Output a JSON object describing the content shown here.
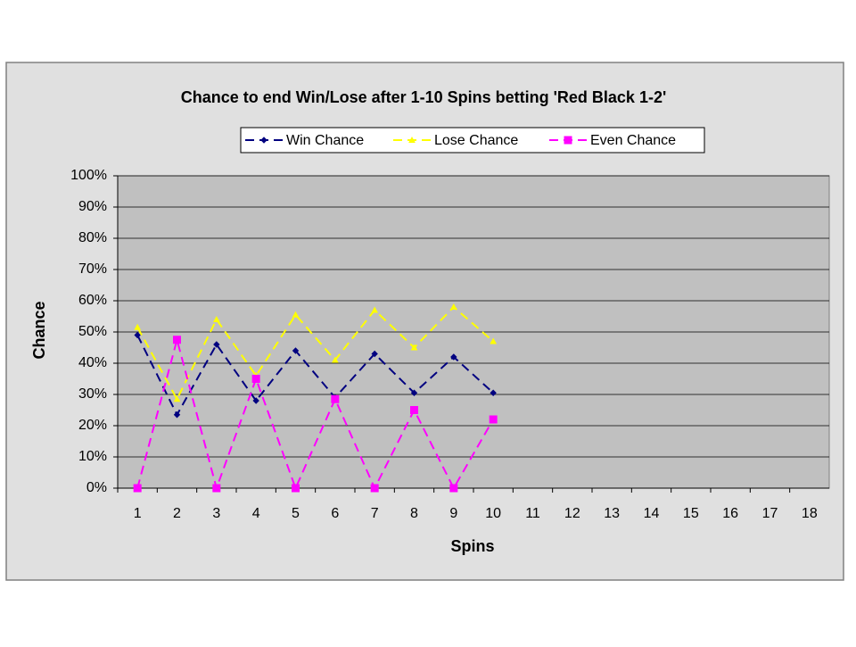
{
  "chart_data": {
    "type": "line",
    "title": "Chance to end Win/Lose after 1-10 Spins betting 'Red Black 1-2'",
    "x_label": "Spins",
    "y_label": "Chance",
    "categories": [
      "1",
      "2",
      "3",
      "4",
      "5",
      "6",
      "7",
      "8",
      "9",
      "10",
      "11",
      "12",
      "13",
      "14",
      "15",
      "16",
      "17",
      "18"
    ],
    "series": [
      {
        "name": "Win Chance",
        "color": "#000080",
        "values": [
          49,
          23.5,
          46,
          28,
          44,
          29,
          43,
          30.5,
          42,
          30.5,
          null,
          null,
          null,
          null,
          null,
          null,
          null,
          null
        ]
      },
      {
        "name": "Lose Chance",
        "color": "#ffff00",
        "values": [
          51.5,
          28.5,
          54,
          36,
          55.5,
          41,
          57,
          45,
          58,
          47,
          null,
          null,
          null,
          null,
          null,
          null,
          null,
          null
        ]
      },
      {
        "name": "Even Chance",
        "color": "#ff00ff",
        "values": [
          0,
          47.5,
          0,
          35,
          0,
          28.5,
          0,
          25,
          0,
          22,
          null,
          null,
          null,
          null,
          null,
          null,
          null,
          null
        ]
      }
    ],
    "ylim": [
      0,
      100
    ],
    "yticks": [
      {
        "value": 0,
        "label": "0%"
      },
      {
        "value": 10,
        "label": "10%"
      },
      {
        "value": 20,
        "label": "20%"
      },
      {
        "value": 30,
        "label": "30%"
      },
      {
        "value": 40,
        "label": "40%"
      },
      {
        "value": 50,
        "label": "50%"
      },
      {
        "value": 60,
        "label": "60%"
      },
      {
        "value": 70,
        "label": "70%"
      },
      {
        "value": 80,
        "label": "80%"
      },
      {
        "value": 90,
        "label": "90%"
      },
      {
        "value": 100,
        "label": "100%"
      }
    ],
    "grid": true,
    "legend": "top"
  }
}
